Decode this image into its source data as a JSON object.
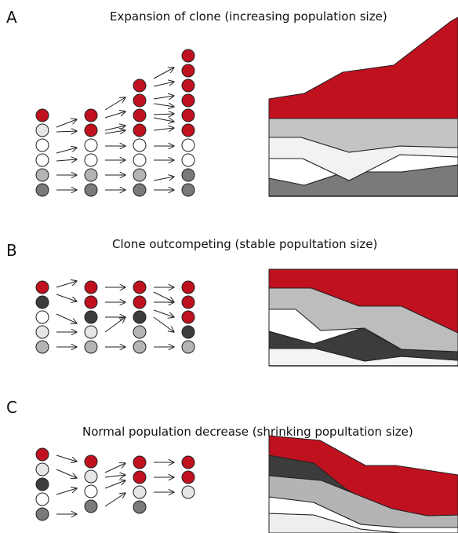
{
  "colors": {
    "red": "#c0111f",
    "dark": "#3c3c3c",
    "grey": "#b4b4b4",
    "mid": "#7a7a7a",
    "light": "#e6e6e6",
    "white": "#ffffff"
  },
  "panels": [
    {
      "letter": "A",
      "title": "Expansion of clone (increasing population size)",
      "columns": [
        [
          "red",
          "light",
          "white",
          "white",
          "grey",
          "mid"
        ],
        [
          "red",
          "red",
          "white",
          "white",
          "grey",
          "mid"
        ],
        [
          "red",
          "red",
          "red",
          "red",
          "white",
          "white",
          "grey",
          "mid"
        ],
        [
          "red",
          "red",
          "red",
          "red",
          "red",
          "red",
          "white",
          "white",
          "mid",
          "mid"
        ]
      ]
    },
    {
      "letter": "B",
      "title": "Clone outcompeting (stable popultation size)",
      "columns": [
        [
          "red",
          "dark",
          "white",
          "light",
          "grey"
        ],
        [
          "red",
          "red",
          "dark",
          "light",
          "grey"
        ],
        [
          "red",
          "red",
          "dark",
          "grey",
          "grey"
        ],
        [
          "red",
          "red",
          "red",
          "dark",
          "grey"
        ]
      ]
    },
    {
      "letter": "C",
      "title": "Normal population decrease (shrinking popultation size)",
      "columns": [
        [
          "red",
          "light",
          "dark",
          "white",
          "mid"
        ],
        [
          "red",
          "light",
          "white",
          "mid"
        ],
        [
          "red",
          "red",
          "light",
          "mid"
        ],
        [
          "red",
          "red",
          "light"
        ]
      ]
    }
  ]
}
